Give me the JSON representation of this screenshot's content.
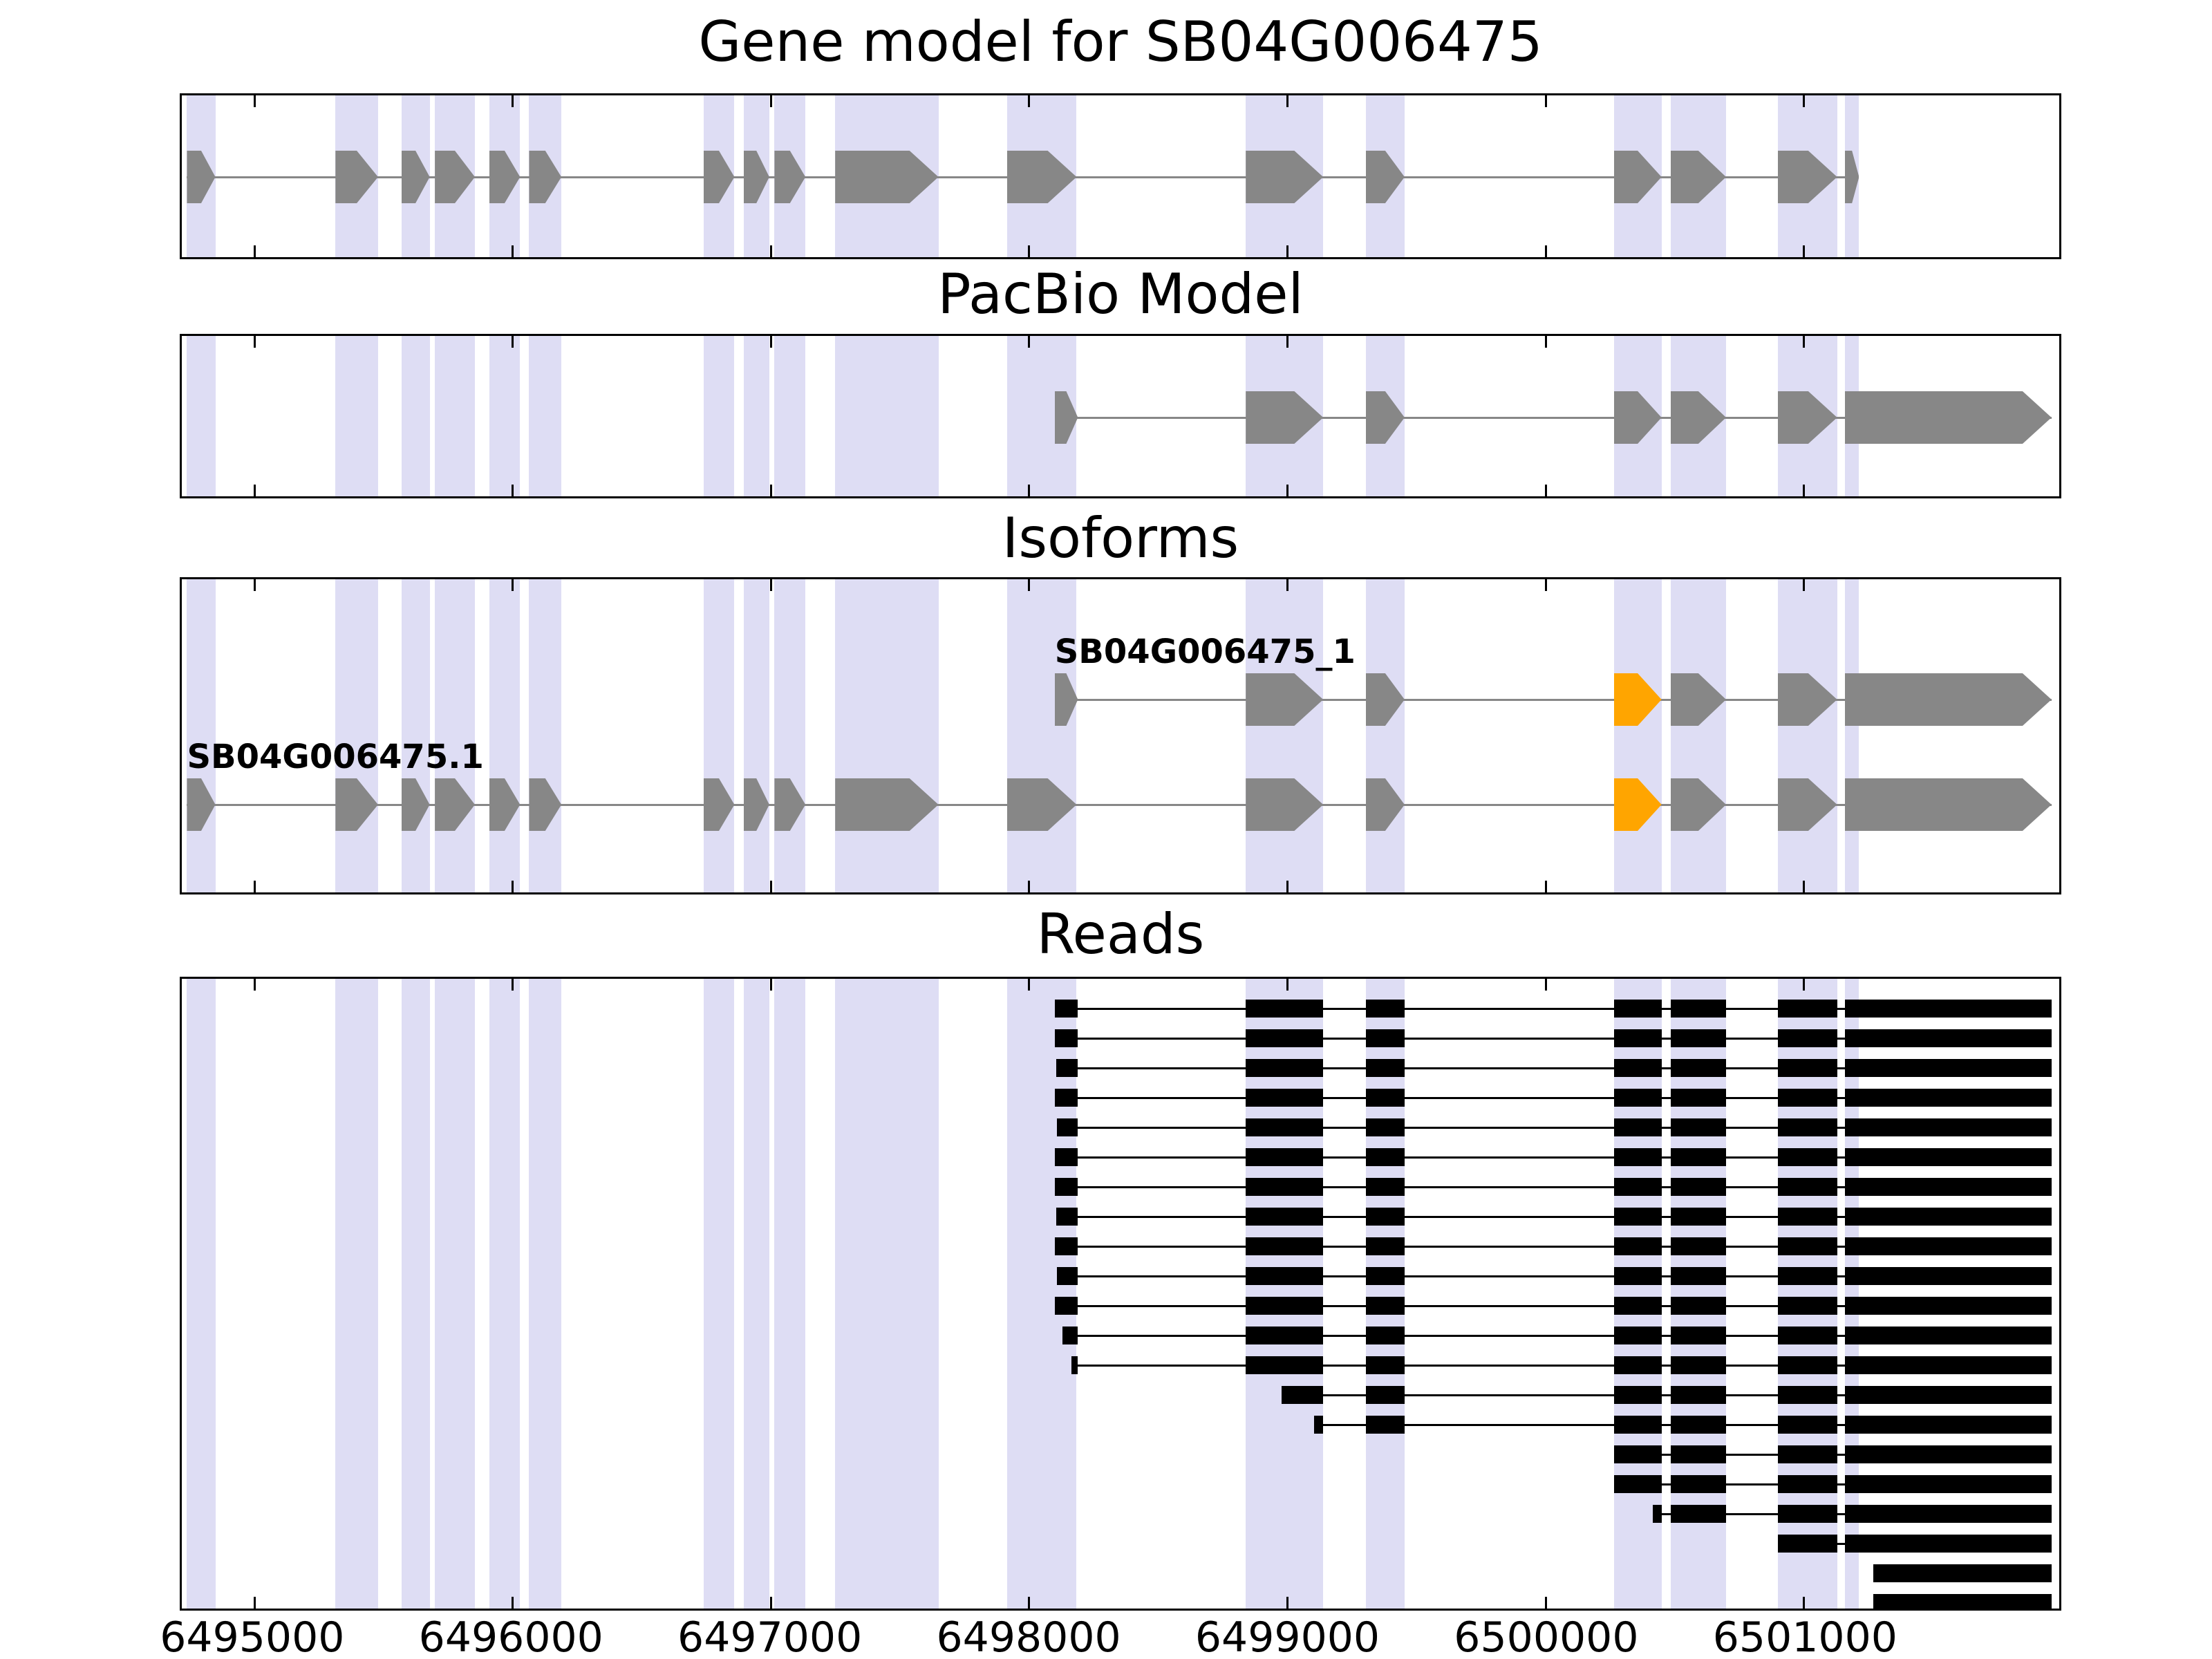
{
  "panels": {
    "gene_model": {
      "title": "Gene model for SB04G006475"
    },
    "pacbio": {
      "title": "PacBio Model"
    },
    "isoforms": {
      "title": "Isoforms"
    },
    "reads": {
      "title": "Reads"
    }
  },
  "colors": {
    "exon": "#878787",
    "intron": "#878787",
    "highlight": "#FFA500",
    "band": "#DEDDF4",
    "read": "#000000"
  },
  "chart_data": {
    "type": "genome-track",
    "title": "Gene model for SB04G006475",
    "panel_titles": [
      "Gene model for SB04G006475",
      "PacBio Model",
      "Isoforms",
      "Reads"
    ],
    "xlabel": "",
    "ylabel": "",
    "xlim": [
      6494720,
      6501990
    ],
    "x_ticks": [
      6495000,
      6496000,
      6497000,
      6498000,
      6499000,
      6500000,
      6501000
    ],
    "x_tick_labels": [
      "6495000",
      "6496000",
      "6497000",
      "6498000",
      "6499000",
      "6500000",
      "6501000"
    ],
    "highlight_bands": [
      [
        6494740,
        6494850
      ],
      [
        6495315,
        6495480
      ],
      [
        6495570,
        6495680
      ],
      [
        6495700,
        6495855
      ],
      [
        6495910,
        6496030
      ],
      [
        6496065,
        6496190
      ],
      [
        6496740,
        6496860
      ],
      [
        6496895,
        6496995
      ],
      [
        6497015,
        6497135
      ],
      [
        6497250,
        6497650
      ],
      [
        6497915,
        6498185
      ],
      [
        6498840,
        6499140
      ],
      [
        6499305,
        6499455
      ],
      [
        6500265,
        6500450
      ],
      [
        6500485,
        6500700
      ],
      [
        6500900,
        6501130
      ],
      [
        6501160,
        6501215
      ]
    ],
    "gene_model_exons": [
      [
        6494740,
        6494850
      ],
      [
        6495315,
        6495480
      ],
      [
        6495570,
        6495680
      ],
      [
        6495700,
        6495855
      ],
      [
        6495910,
        6496030
      ],
      [
        6496065,
        6496190
      ],
      [
        6496740,
        6496860
      ],
      [
        6496895,
        6496995
      ],
      [
        6497015,
        6497135
      ],
      [
        6497250,
        6497650
      ],
      [
        6497915,
        6498185
      ],
      [
        6498840,
        6499140
      ],
      [
        6499305,
        6499455
      ],
      [
        6500265,
        6500450
      ],
      [
        6500485,
        6500700
      ],
      [
        6500900,
        6501130
      ],
      [
        6501160,
        6501215
      ]
    ],
    "pacbio_exons": [
      [
        6498100,
        6498190
      ],
      [
        6498840,
        6499140
      ],
      [
        6499305,
        6499455
      ],
      [
        6500265,
        6500450
      ],
      [
        6500485,
        6500700
      ],
      [
        6500900,
        6501130
      ],
      [
        6501160,
        6501960
      ]
    ],
    "isoforms": [
      {
        "name": "SB04G006475_1",
        "exons": [
          [
            6498100,
            6498190
          ],
          [
            6498840,
            6499140
          ],
          [
            6499305,
            6499455
          ],
          [
            6500265,
            6500450,
            "orange"
          ],
          [
            6500485,
            6500700
          ],
          [
            6500900,
            6501130
          ],
          [
            6501160,
            6501960
          ]
        ]
      },
      {
        "name": "SB04G006475.1",
        "exons": [
          [
            6494740,
            6494850
          ],
          [
            6495315,
            6495480
          ],
          [
            6495570,
            6495680
          ],
          [
            6495700,
            6495855
          ],
          [
            6495910,
            6496030
          ],
          [
            6496065,
            6496190
          ],
          [
            6496740,
            6496860
          ],
          [
            6496895,
            6496995
          ],
          [
            6497015,
            6497135
          ],
          [
            6497250,
            6497650
          ],
          [
            6497915,
            6498185
          ],
          [
            6498840,
            6499140
          ],
          [
            6499305,
            6499455
          ],
          [
            6500265,
            6500450,
            "orange"
          ],
          [
            6500485,
            6500700
          ],
          [
            6500900,
            6501130
          ],
          [
            6501160,
            6501960
          ]
        ]
      }
    ],
    "reads": [
      [
        [
          6498100,
          6498190
        ],
        [
          6498840,
          6499140
        ],
        [
          6499305,
          6499455
        ],
        [
          6500265,
          6500450
        ],
        [
          6500485,
          6500700
        ],
        [
          6500900,
          6501130
        ],
        [
          6501160,
          6501960
        ]
      ],
      [
        [
          6498100,
          6498190
        ],
        [
          6498840,
          6499140
        ],
        [
          6499305,
          6499455
        ],
        [
          6500265,
          6500450
        ],
        [
          6500485,
          6500700
        ],
        [
          6500900,
          6501130
        ],
        [
          6501160,
          6501960
        ]
      ],
      [
        [
          6498105,
          6498190
        ],
        [
          6498840,
          6499140
        ],
        [
          6499305,
          6499455
        ],
        [
          6500265,
          6500450
        ],
        [
          6500485,
          6500700
        ],
        [
          6500900,
          6501130
        ],
        [
          6501160,
          6501960
        ]
      ],
      [
        [
          6498100,
          6498190
        ],
        [
          6498840,
          6499140
        ],
        [
          6499305,
          6499455
        ],
        [
          6500265,
          6500450
        ],
        [
          6500485,
          6500700
        ],
        [
          6500900,
          6501130
        ],
        [
          6501160,
          6501960
        ]
      ],
      [
        [
          6498110,
          6498190
        ],
        [
          6498840,
          6499140
        ],
        [
          6499305,
          6499455
        ],
        [
          6500265,
          6500450
        ],
        [
          6500485,
          6500700
        ],
        [
          6500900,
          6501130
        ],
        [
          6501160,
          6501960
        ]
      ],
      [
        [
          6498100,
          6498190
        ],
        [
          6498840,
          6499140
        ],
        [
          6499305,
          6499455
        ],
        [
          6500265,
          6500450
        ],
        [
          6500485,
          6500700
        ],
        [
          6500900,
          6501130
        ],
        [
          6501160,
          6501960
        ]
      ],
      [
        [
          6498100,
          6498190
        ],
        [
          6498840,
          6499140
        ],
        [
          6499305,
          6499455
        ],
        [
          6500265,
          6500450
        ],
        [
          6500485,
          6500700
        ],
        [
          6500900,
          6501130
        ],
        [
          6501160,
          6501960
        ]
      ],
      [
        [
          6498105,
          6498190
        ],
        [
          6498840,
          6499140
        ],
        [
          6499305,
          6499455
        ],
        [
          6500265,
          6500450
        ],
        [
          6500485,
          6500700
        ],
        [
          6500900,
          6501130
        ],
        [
          6501160,
          6501960
        ]
      ],
      [
        [
          6498100,
          6498190
        ],
        [
          6498840,
          6499140
        ],
        [
          6499305,
          6499455
        ],
        [
          6500265,
          6500450
        ],
        [
          6500485,
          6500700
        ],
        [
          6500900,
          6501130
        ],
        [
          6501160,
          6501960
        ]
      ],
      [
        [
          6498110,
          6498190
        ],
        [
          6498840,
          6499140
        ],
        [
          6499305,
          6499455
        ],
        [
          6500265,
          6500450
        ],
        [
          6500485,
          6500700
        ],
        [
          6500900,
          6501130
        ],
        [
          6501160,
          6501960
        ]
      ],
      [
        [
          6498100,
          6498190
        ],
        [
          6498840,
          6499140
        ],
        [
          6499305,
          6499455
        ],
        [
          6500265,
          6500450
        ],
        [
          6500485,
          6500700
        ],
        [
          6500900,
          6501130
        ],
        [
          6501160,
          6501960
        ]
      ],
      [
        [
          6498130,
          6498190
        ],
        [
          6498840,
          6499140
        ],
        [
          6499305,
          6499455
        ],
        [
          6500265,
          6500450
        ],
        [
          6500485,
          6500700
        ],
        [
          6500900,
          6501130
        ],
        [
          6501160,
          6501960
        ]
      ],
      [
        [
          6498165,
          6498190
        ],
        [
          6498840,
          6499140
        ],
        [
          6499305,
          6499455
        ],
        [
          6500265,
          6500450
        ],
        [
          6500485,
          6500700
        ],
        [
          6500900,
          6501130
        ],
        [
          6501160,
          6501960
        ]
      ],
      [
        [
          6498978,
          6499140
        ],
        [
          6499305,
          6499455
        ],
        [
          6500265,
          6500450
        ],
        [
          6500485,
          6500700
        ],
        [
          6500900,
          6501130
        ],
        [
          6501160,
          6501960
        ]
      ],
      [
        [
          6499105,
          6499140
        ],
        [
          6499305,
          6499455
        ],
        [
          6500265,
          6500450
        ],
        [
          6500485,
          6500700
        ],
        [
          6500900,
          6501130
        ],
        [
          6501160,
          6501960
        ]
      ],
      [
        [
          6500265,
          6500450
        ],
        [
          6500485,
          6500700
        ],
        [
          6500900,
          6501130
        ],
        [
          6501160,
          6501960
        ]
      ],
      [
        [
          6500265,
          6500450
        ],
        [
          6500485,
          6500700
        ],
        [
          6500900,
          6501130
        ],
        [
          6501160,
          6501960
        ]
      ],
      [
        [
          6500415,
          6500450
        ],
        [
          6500485,
          6500700
        ],
        [
          6500900,
          6501130
        ],
        [
          6501160,
          6501960
        ]
      ],
      [
        [
          6500900,
          6501130
        ],
        [
          6501160,
          6501960
        ]
      ],
      [
        [
          6501270,
          6501960
        ]
      ],
      [
        [
          6501270,
          6501960
        ]
      ]
    ]
  }
}
